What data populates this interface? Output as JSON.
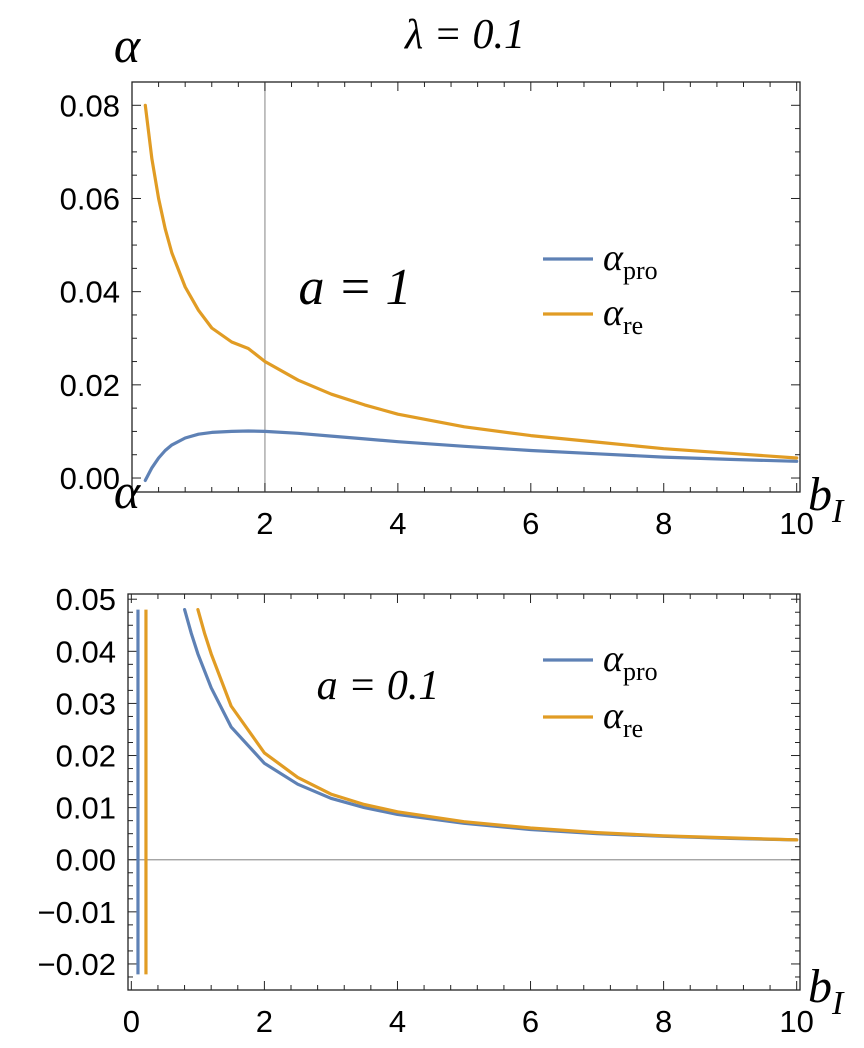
{
  "figure_title": "λ = 0.1",
  "chart_data": [
    {
      "type": "line",
      "annotation": "a = 1",
      "ylabel": "α",
      "xlabel": "b_I",
      "xlabel_main": "b",
      "xlabel_sub": "I",
      "xlim": [
        0,
        10.05
      ],
      "ylim": [
        -0.003,
        0.085
      ],
      "x_ticks": [
        2,
        4,
        6,
        8,
        10
      ],
      "x_tick_labels": [
        "2",
        "4",
        "6",
        "8",
        "10"
      ],
      "y_ticks": [
        0,
        0.02,
        0.04,
        0.06,
        0.08
      ],
      "y_tick_labels": [
        "0.00",
        "0.02",
        "0.04",
        "0.06",
        "0.08"
      ],
      "x_ref_line": 2,
      "legend_position": "right",
      "series": [
        {
          "name": "α_pro",
          "name_main": "α",
          "name_sub": "pro",
          "color": "#5e81b5",
          "x": [
            0.2,
            0.3,
            0.4,
            0.5,
            0.6,
            0.8,
            1,
            1.2,
            1.5,
            1.75,
            2,
            2.5,
            3,
            3.5,
            4,
            5,
            6,
            7,
            8,
            9,
            10
          ],
          "y": [
            -0.0005,
            0.0022,
            0.0043,
            0.0059,
            0.0071,
            0.0086,
            0.0094,
            0.0098,
            0.01,
            0.0101,
            0.01,
            0.0096,
            0.009,
            0.0084,
            0.0078,
            0.0068,
            0.0059,
            0.0052,
            0.0045,
            0.004,
            0.0036
          ]
        },
        {
          "name": "α_re",
          "name_main": "α",
          "name_sub": "re",
          "color": "#e19c24",
          "x": [
            0.2,
            0.3,
            0.4,
            0.5,
            0.6,
            0.8,
            1,
            1.2,
            1.5,
            1.75,
            2,
            2.5,
            3,
            3.5,
            4,
            5,
            6,
            7,
            8,
            9,
            10
          ],
          "y": [
            0.08,
            0.0685,
            0.06,
            0.0535,
            0.0483,
            0.041,
            0.036,
            0.0322,
            0.0292,
            0.0278,
            0.025,
            0.021,
            0.018,
            0.0157,
            0.0137,
            0.011,
            0.0091,
            0.0077,
            0.0063,
            0.0053,
            0.0043
          ]
        }
      ]
    },
    {
      "type": "line",
      "annotation": "a = 0.1",
      "ylabel": "α",
      "xlabel": "b_I",
      "xlabel_main": "b",
      "xlabel_sub": "I",
      "xlim": [
        -0.05,
        10.05
      ],
      "ylim": [
        -0.025,
        0.051
      ],
      "x_ticks": [
        0,
        2,
        4,
        6,
        8,
        10
      ],
      "x_tick_labels": [
        "0",
        "2",
        "4",
        "6",
        "8",
        "10"
      ],
      "y_ticks": [
        -0.02,
        -0.01,
        0,
        0.01,
        0.02,
        0.03,
        0.04,
        0.05
      ],
      "y_tick_labels": [
        "-0.02",
        "-0.01",
        "0.00",
        "0.01",
        "0.02",
        "0.03",
        "0.04",
        "0.05"
      ],
      "y_ref_line": 0,
      "legend_position": "right",
      "series": [
        {
          "name": "α_pro",
          "name_main": "α",
          "name_sub": "pro",
          "color": "#5e81b5",
          "x": [
            0.8,
            0.9,
            1,
            1.2,
            1.5,
            2,
            2.5,
            3,
            3.5,
            4,
            5,
            6,
            7,
            8,
            9,
            10
          ],
          "y": [
            0.048,
            0.0435,
            0.0395,
            0.033,
            0.0255,
            0.0185,
            0.0145,
            0.0118,
            0.01,
            0.0087,
            0.007,
            0.0058,
            0.005,
            0.0045,
            0.0041,
            0.0038
          ],
          "branch_x": [
            0.1,
            0.1
          ],
          "branch_y": [
            -0.022,
            0.048
          ]
        },
        {
          "name": "α_re",
          "name_main": "α",
          "name_sub": "re",
          "color": "#e19c24",
          "x": [
            1,
            1.1,
            1.2,
            1.5,
            2,
            2.5,
            3,
            3.5,
            4,
            5,
            6,
            7,
            8,
            9,
            10
          ],
          "y": [
            0.048,
            0.0435,
            0.0395,
            0.0295,
            0.0205,
            0.0158,
            0.0126,
            0.0106,
            0.0092,
            0.0073,
            0.0061,
            0.0052,
            0.0046,
            0.0042,
            0.0038
          ],
          "branch_x": [
            0.22,
            0.22
          ],
          "branch_y": [
            -0.022,
            0.048
          ]
        }
      ]
    }
  ]
}
